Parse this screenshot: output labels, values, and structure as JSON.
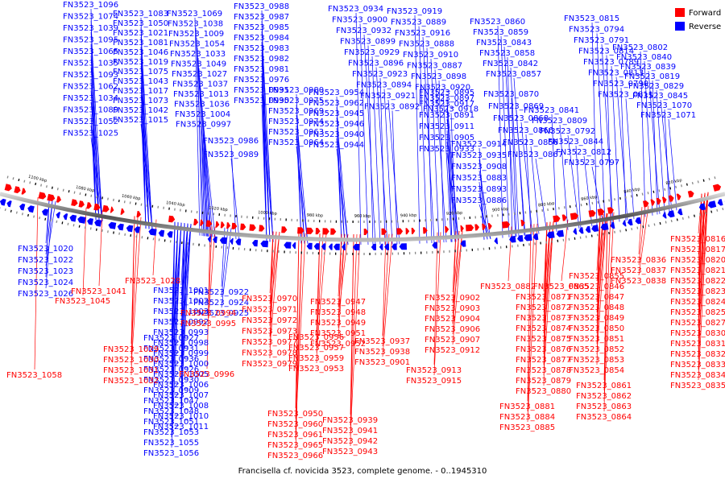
{
  "caption": "Francisella cf. novicida 3523, complete genome. - 0..1945310",
  "legend": {
    "forward_label": "Forward",
    "reverse_label": "Reverse",
    "forward_color": "#ff0000",
    "reverse_color": "#0000ff"
  },
  "kbp_labels": [
    "1100 kbp",
    "1080 kbp",
    "1060 kbp",
    "1040 kbp",
    "1020 kbp",
    "1000 kbp",
    "980 kbp",
    "960 kbp",
    "940 kbp",
    "920 kbp",
    "900 kbp",
    "880 kbp",
    "860 kbp",
    "840 kbp",
    "820 kbp"
  ],
  "reverse_genes": [
    "FN3523_1096",
    "FN3523_1074",
    "FN3523_1039",
    "FN3523_1095",
    "FN3523_1065",
    "FN3523_1035",
    "FN3523_1093",
    "FN3523_1062",
    "FN3523_1034",
    "FN3523_1089",
    "FN3523_1052",
    "FN3523_1025",
    "FN3523_1083",
    "FN3523_1050",
    "FN3523_1021",
    "FN3523_1081",
    "FN3523_1046",
    "FN3523_1019",
    "FN3523_1075",
    "FN3523_1043",
    "FN3523_1017",
    "FN3523_1073",
    "FN3523_1042",
    "FN3523_1015",
    "FN3523_1069",
    "FN3523_1038",
    "FN3523_1009",
    "FN3523_1054",
    "FN3523_1033",
    "FN3523_1049",
    "FN3523_1027",
    "FN3523_1037",
    "FN3523_1013",
    "FN3523_1036",
    "FN3523_1004",
    "FN3523_0997",
    "FN3523_0986",
    "FN3523_0989",
    "FN3523_0988",
    "FN3523_0987",
    "FN3523_0985",
    "FN3523_0984",
    "FN3523_0983",
    "FN3523_0982",
    "FN3523_0981",
    "FN3523_0976",
    "FN3523_0991",
    "FN3523_0990",
    "FN3523_0980",
    "FN3523_0975",
    "FN3523_0969",
    "FN3523_0974",
    "FN3523_0963",
    "FN3523_0964",
    "FN3523_0954",
    "FN3523_0962",
    "FN3523_0945",
    "FN3523_0946",
    "FN3523_0940",
    "FN3523_0944",
    "FN3523_0934",
    "FN3523_0900",
    "FN3523_0932",
    "FN3523_0899",
    "FN3523_0929",
    "FN3523_0896",
    "FN3523_0923",
    "FN3523_0894",
    "FN3523_0921",
    "FN3523_0892",
    "FN3523_0919",
    "FN3523_0889",
    "FN3523_0916",
    "FN3523_0888",
    "FN3523_0910",
    "FN3523_0887",
    "FN3523_0898",
    "FN3523_0920",
    "FN3523_0897",
    "FN3523_0918",
    "FN3523_0895",
    "FN3523_0917",
    "FN3523_0891",
    "FN3523_0911",
    "FN3523_0905",
    "FN3523_0933",
    "FN3523_0914",
    "FN3523_0935",
    "FN3523_0908",
    "FN3523_0883",
    "FN3523_0893",
    "FN3523_0886",
    "FN3523_0860",
    "FN3523_0859",
    "FN3523_0843",
    "FN3523_0858",
    "FN3523_0842",
    "FN3523_0857",
    "FN3523_0870",
    "FN3523_0869",
    "FN3523_0868",
    "FN3523_0866",
    "FN3523_0856",
    "FN3523_0867",
    "FN3523_0815",
    "FN3523_0794",
    "FN3523_0791",
    "FN3523_0814",
    "FN3523_0789",
    "FN3523_0813",
    "FN3523_0790",
    "FN3523_0811",
    "FN3523_0841",
    "FN3523_0809",
    "FN3523_0792",
    "FN3523_0844",
    "FN3523_0812",
    "FN3523_0797",
    "FN3523_0802",
    "FN3523_0840",
    "FN3523_0839",
    "FN3523_0819",
    "FN3523_0829",
    "FN3523_0845",
    "FN3523_1070",
    "FN3523_1071",
    "FN3523_1057",
    "FN3523_1067",
    "FN3523_1040",
    "FN3523_1044",
    "FN3523_1066",
    "FN3523_1020",
    "FN3523_1022",
    "FN3523_1023",
    "FN3523_1024",
    "FN3523_1026",
    "FN3523_1001",
    "FN3523_1002",
    "FN3523_1003",
    "FN3523_0992",
    "FN3523_0993",
    "FN3523_0998",
    "FN3523_0999",
    "FN3523_1000",
    "FN3523_1005",
    "FN3523_1006",
    "FN3523_1007",
    "FN3523_1008",
    "FN3523_1010",
    "FN3523_1011",
    "FN3523_0922",
    "FN3523_0924",
    "FN3523_0925",
    "FN3523_0927",
    "FN3523_0931",
    "FN3523_0936",
    "FN3523_0926",
    "FN3523_0930",
    "FN3523_0909",
    "FN3523_1047",
    "FN3523_1048",
    "FN3523_1051",
    "FN3523_1053",
    "FN3523_1055",
    "FN3523_1056"
  ],
  "forward_genes": [
    "FN3523_1041",
    "FN3523_1028",
    "FN3523_1045",
    "FN3523_0994",
    "FN3523_0995",
    "FN3523_1029",
    "FN3523_1030",
    "FN3523_1031",
    "FN3523_1032",
    "FN3523_0996",
    "FN3523_0970",
    "FN3523_0971",
    "FN3523_0972",
    "FN3523_0973",
    "FN3523_0977",
    "FN3523_0978",
    "FN3523_0979",
    "FN3523_0947",
    "FN3523_0948",
    "FN3523_0949",
    "FN3523_0951",
    "FN3523_0952",
    "FN3523_0956",
    "FN3523_0957",
    "FN3523_0959",
    "FN3523_0953",
    "FN3523_0950",
    "FN3523_0960",
    "FN3523_0961",
    "FN3523_0965",
    "FN3523_0966",
    "FN3523_0939",
    "FN3523_0941",
    "FN3523_0942",
    "FN3523_0943",
    "FN3523_0928",
    "FN3523_0937",
    "FN3523_0938",
    "FN3523_0901",
    "FN3523_0902",
    "FN3523_0903",
    "FN3523_0904",
    "FN3523_0906",
    "FN3523_0907",
    "FN3523_0912",
    "FN3523_0913",
    "FN3523_0915",
    "FN3523_0882",
    "FN3523_0865",
    "FN3523_0871",
    "FN3523_0872",
    "FN3523_0873",
    "FN3523_0874",
    "FN3523_0875",
    "FN3523_0876",
    "FN3523_0877",
    "FN3523_0878",
    "FN3523_0879",
    "FN3523_0880",
    "FN3523_0881",
    "FN3523_0884",
    "FN3523_0885",
    "FN3523_0890",
    "FN3523_0855",
    "FN3523_0846",
    "FN3523_0847",
    "FN3523_0848",
    "FN3523_0849",
    "FN3523_0850",
    "FN3523_0851",
    "FN3523_0852",
    "FN3523_0853",
    "FN3523_0854",
    "FN3523_0861",
    "FN3523_0862",
    "FN3523_0863",
    "FN3523_0864",
    "FN3523_0836",
    "FN3523_0837",
    "FN3523_0838",
    "FN3523_0816",
    "FN3523_0817",
    "FN3523_0820",
    "FN3523_0821",
    "FN3523_0822",
    "FN3523_0823",
    "FN3523_0824",
    "FN3523_0825",
    "FN3523_0827",
    "FN3523_0830",
    "FN3523_0831",
    "FN3523_0832",
    "FN3523_0833",
    "FN3523_0834",
    "FN3523_0835",
    "FN3523_1058"
  ]
}
